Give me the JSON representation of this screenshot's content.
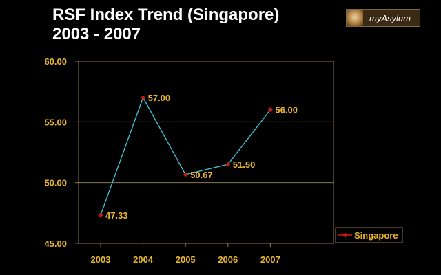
{
  "header": {
    "title_line1": "RSF Index Trend (Singapore)",
    "title_line2": "2003 - 2007",
    "logo_text": "myAsylum"
  },
  "colors": {
    "axis": "#8a7a52",
    "grid": "#8a7a52",
    "line": "#40c8d8",
    "marker": "#d01818",
    "label": "#e8b62c"
  },
  "chart_data": {
    "type": "line",
    "categories": [
      "2003",
      "2004",
      "2005",
      "2006",
      "2007"
    ],
    "series": [
      {
        "name": "Singapore",
        "values": [
          47.33,
          57.0,
          50.67,
          51.5,
          56.0
        ],
        "labels": [
          "47.33",
          "57.00",
          "50.67",
          "51.50",
          "56.00"
        ]
      }
    ],
    "yticks": [
      "45.00",
      "50.00",
      "55.00",
      "60.00"
    ],
    "ylim": [
      45,
      60
    ],
    "grid": true,
    "legend": "right"
  }
}
